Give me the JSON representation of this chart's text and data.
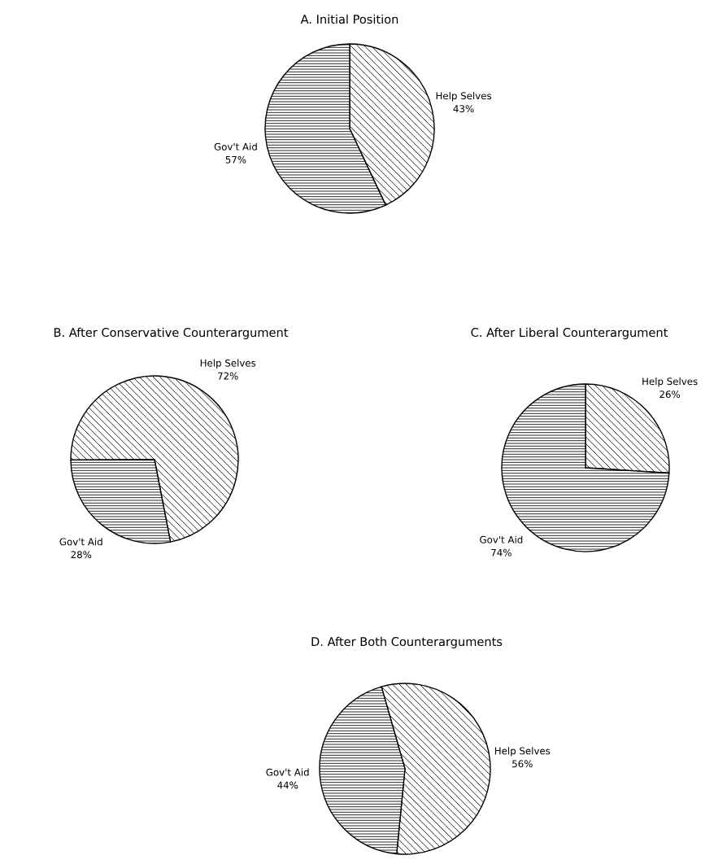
{
  "chart_data": [
    {
      "type": "pie",
      "title": "A. Initial Position",
      "categories": [
        "Help Selves",
        "Gov't Aid"
      ],
      "values": [
        43,
        57
      ],
      "value_labels": [
        "43%",
        "57%"
      ]
    },
    {
      "type": "pie",
      "title": "B. After Conservative Counterargument",
      "categories": [
        "Help Selves",
        "Gov't Aid"
      ],
      "values": [
        72,
        28
      ],
      "value_labels": [
        "72%",
        "28%"
      ]
    },
    {
      "type": "pie",
      "title": "C. After Liberal Counterargument",
      "categories": [
        "Help Selves",
        "Gov't Aid"
      ],
      "values": [
        26,
        74
      ],
      "value_labels": [
        "26%",
        "74%"
      ]
    },
    {
      "type": "pie",
      "title": "D. After Both Counterarguments",
      "categories": [
        "Help Selves",
        "Gov't Aid"
      ],
      "values": [
        56,
        44
      ],
      "value_labels": [
        "56%",
        "44%"
      ]
    }
  ]
}
